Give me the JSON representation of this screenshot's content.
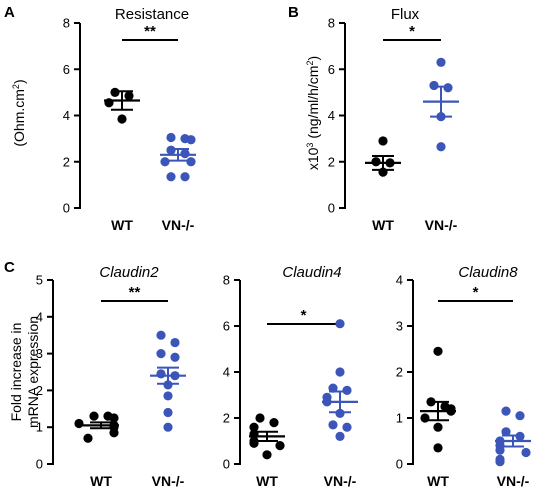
{
  "colors": {
    "wt": "#000000",
    "vn": "#3b55b8",
    "axis": "#000000"
  },
  "chart_data": [
    {
      "type": "scatter",
      "panel": "A",
      "title": "Resistance",
      "ylabel": "(Ohm.cm²)",
      "ylabel_parts": [
        "(Ohm.cm",
        "2",
        ")"
      ],
      "ylim": [
        0,
        8
      ],
      "yticks": [
        "0",
        "2",
        "4",
        "6",
        "8"
      ],
      "categories": [
        "WT",
        "VN-/-"
      ],
      "series": [
        {
          "values": [
            5.0,
            4.85,
            4.55,
            3.85
          ],
          "mean": 4.65,
          "sem": 0.4
        },
        {
          "values": [
            3.05,
            3.0,
            2.95,
            2.5,
            2.35,
            2.0,
            2.0,
            1.35,
            1.35
          ],
          "mean": 2.3,
          "sem": 0.25
        }
      ],
      "significance": "**"
    },
    {
      "type": "scatter",
      "panel": "B",
      "title": "Flux",
      "ylabel": "x10³ (ng/ml/h/cm²)",
      "ylabel_parts": [
        "x10",
        "3",
        " (ng/ml/h/cm",
        "2",
        ")"
      ],
      "ylim": [
        0,
        8
      ],
      "yticks": [
        "0",
        "2",
        "4",
        "6",
        "8"
      ],
      "categories": [
        "WT",
        "VN-/-"
      ],
      "series": [
        {
          "values": [
            2.9,
            2.0,
            1.95,
            1.55
          ],
          "mean": 1.95,
          "sem": 0.3
        },
        {
          "values": [
            6.3,
            5.3,
            5.2,
            3.95,
            2.65
          ],
          "mean": 4.6,
          "sem": 0.65
        }
      ],
      "significance": "*"
    },
    {
      "type": "scatter",
      "panel": "C",
      "title": "Claudin2",
      "ylabel": "Fold increase in mRNA expression",
      "ylabel_lines": [
        "Fold increase in",
        "mRNA expression"
      ],
      "ylim": [
        0,
        5
      ],
      "yticks": [
        "0",
        "1",
        "2",
        "3",
        "4",
        "5"
      ],
      "categories": [
        "WT",
        "VN-/-"
      ],
      "series": [
        {
          "values": [
            1.3,
            1.3,
            1.25,
            1.1,
            1.05,
            1.0,
            0.85,
            0.7
          ],
          "mean": 1.05,
          "sem": 0.08
        },
        {
          "values": [
            3.5,
            3.3,
            3.0,
            2.9,
            2.45,
            2.4,
            2.15,
            1.85,
            1.4,
            1.0
          ],
          "mean": 2.4,
          "sem": 0.22
        }
      ],
      "significance": "**"
    },
    {
      "type": "scatter",
      "title": "Claudin4",
      "ylim": [
        0,
        8
      ],
      "yticks": [
        "0",
        "2",
        "4",
        "6",
        "8"
      ],
      "categories": [
        "WT",
        "VN-/-"
      ],
      "series": [
        {
          "values": [
            2.0,
            1.8,
            1.6,
            1.3,
            1.0,
            0.9,
            0.8,
            0.4
          ],
          "mean": 1.2,
          "sem": 0.2
        },
        {
          "values": [
            6.1,
            4.0,
            3.3,
            3.2,
            2.9,
            2.7,
            2.2,
            1.7,
            1.6,
            1.2
          ],
          "mean": 2.7,
          "sem": 0.45
        }
      ],
      "significance": "*"
    },
    {
      "type": "scatter",
      "title": "Claudin8",
      "ylim": [
        0,
        4
      ],
      "yticks": [
        "0",
        "1",
        "2",
        "3",
        "4"
      ],
      "categories": [
        "WT",
        "VN-/-"
      ],
      "series": [
        {
          "values": [
            2.45,
            1.35,
            1.25,
            1.2,
            1.15,
            1.0,
            0.8,
            0.35
          ],
          "mean": 1.15,
          "sem": 0.2
        },
        {
          "values": [
            1.15,
            1.05,
            0.7,
            0.6,
            0.5,
            0.4,
            0.3,
            0.25,
            0.1,
            0.05
          ],
          "mean": 0.5,
          "sem": 0.12
        }
      ],
      "significance": "*"
    }
  ]
}
